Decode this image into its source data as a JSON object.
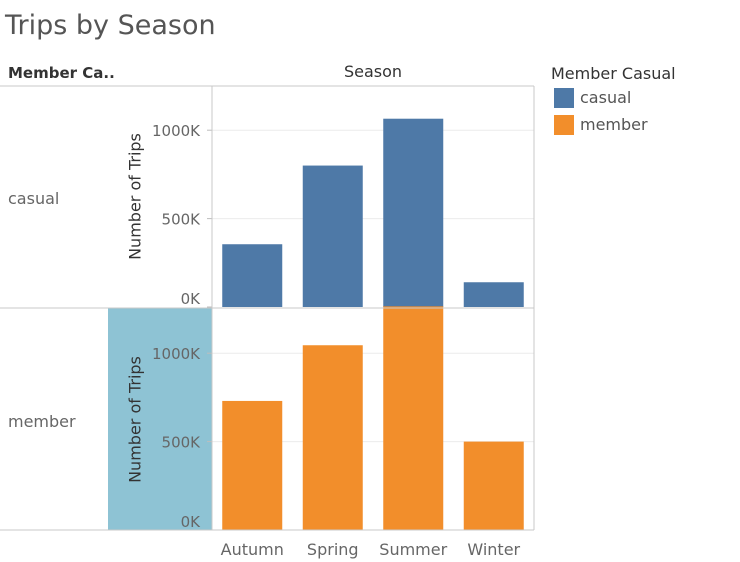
{
  "title": "Trips by Season",
  "row_header": "Member Ca..",
  "column_header": "Season",
  "legend": {
    "title": "Member Casual",
    "items": [
      {
        "label": "casual",
        "color": "#4E79A7"
      },
      {
        "label": "member",
        "color": "#F28E2B"
      }
    ]
  },
  "chart_data": {
    "type": "bar",
    "title": "Trips by Season",
    "xlabel": "Season",
    "ylabel": "Number of Trips",
    "categories": [
      "Autumn",
      "Spring",
      "Summer",
      "Winter"
    ],
    "yticks": [
      0,
      500000,
      1000000
    ],
    "ytick_labels": [
      "0K",
      "500K",
      "1000K"
    ],
    "ylim": [
      0,
      1250000
    ],
    "grid": true,
    "legend_position": "top-right",
    "highlight_color": "#8EC3D4",
    "series": [
      {
        "name": "casual",
        "color": "#4E79A7",
        "values": [
          355000,
          800000,
          1065000,
          140000
        ]
      },
      {
        "name": "member",
        "color": "#F28E2B",
        "values": [
          730000,
          1045000,
          1265000,
          500000
        ]
      }
    ]
  }
}
